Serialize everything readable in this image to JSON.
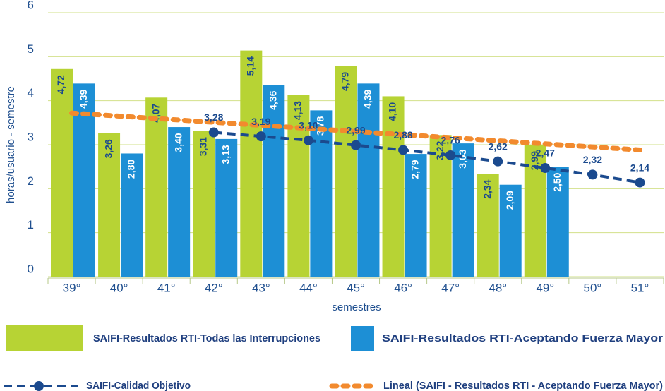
{
  "chart_data": {
    "type": "bar",
    "categories": [
      "39°",
      "40°",
      "41°",
      "42°",
      "43°",
      "44°",
      "45°",
      "46°",
      "47°",
      "48°",
      "49°",
      "50°",
      "51°"
    ],
    "xlabel": "semestres",
    "ylabel": "horas/usuario - semestre",
    "ylim": [
      0,
      6
    ],
    "yticks": [
      0,
      1,
      2,
      3,
      4,
      5,
      6
    ],
    "grid": true,
    "series": [
      {
        "name": "SAIFI-Resultados RTI-Todas las Interrupciones",
        "color": "#b7d334",
        "kind": "bar",
        "values": [
          4.72,
          3.26,
          4.07,
          3.31,
          5.14,
          4.13,
          4.79,
          4.1,
          3.22,
          2.34,
          2.99,
          null,
          null
        ],
        "value_labels": [
          "4,72",
          "3,26",
          "4,07",
          "3,31",
          "5,14",
          "4,13",
          "4,79",
          "4,10",
          "3,22",
          "2,34",
          "2,99",
          null,
          null
        ]
      },
      {
        "name": "SAIFI-Resultados RTI-Aceptando Fuerza Mayor",
        "color": "#1d8fd5",
        "kind": "bar",
        "values": [
          4.39,
          2.8,
          3.4,
          3.13,
          4.36,
          3.78,
          4.39,
          2.79,
          3.03,
          2.09,
          2.5,
          null,
          null
        ],
        "value_labels": [
          "4,39",
          "2,80",
          "3,40",
          "3,13",
          "4,36",
          "3,78",
          "4,39",
          "2,79",
          "3,03",
          "2,09",
          "2,50",
          null,
          null
        ]
      },
      {
        "name": "SAIFI-Calidad Objetivo",
        "color": "#1b4a8e",
        "kind": "line",
        "values": [
          null,
          null,
          null,
          3.28,
          3.19,
          3.1,
          2.99,
          2.88,
          2.76,
          2.62,
          2.47,
          2.32,
          2.14
        ],
        "value_labels": [
          null,
          null,
          null,
          "3,28",
          "3,19",
          "3,10",
          "2,99",
          "2,88",
          "2,76",
          "2,62",
          "2,47",
          "2,32",
          "2,14"
        ]
      },
      {
        "name": "Lineal (SAIFI - Resultados RTI - Aceptando Fuerza Mayor)",
        "color": "#f28a2e",
        "kind": "trend",
        "values": [
          3.72,
          3.65,
          3.58,
          3.51,
          3.44,
          3.37,
          3.3,
          3.23,
          3.16,
          3.09,
          3.02,
          2.95,
          2.88
        ]
      }
    ]
  }
}
